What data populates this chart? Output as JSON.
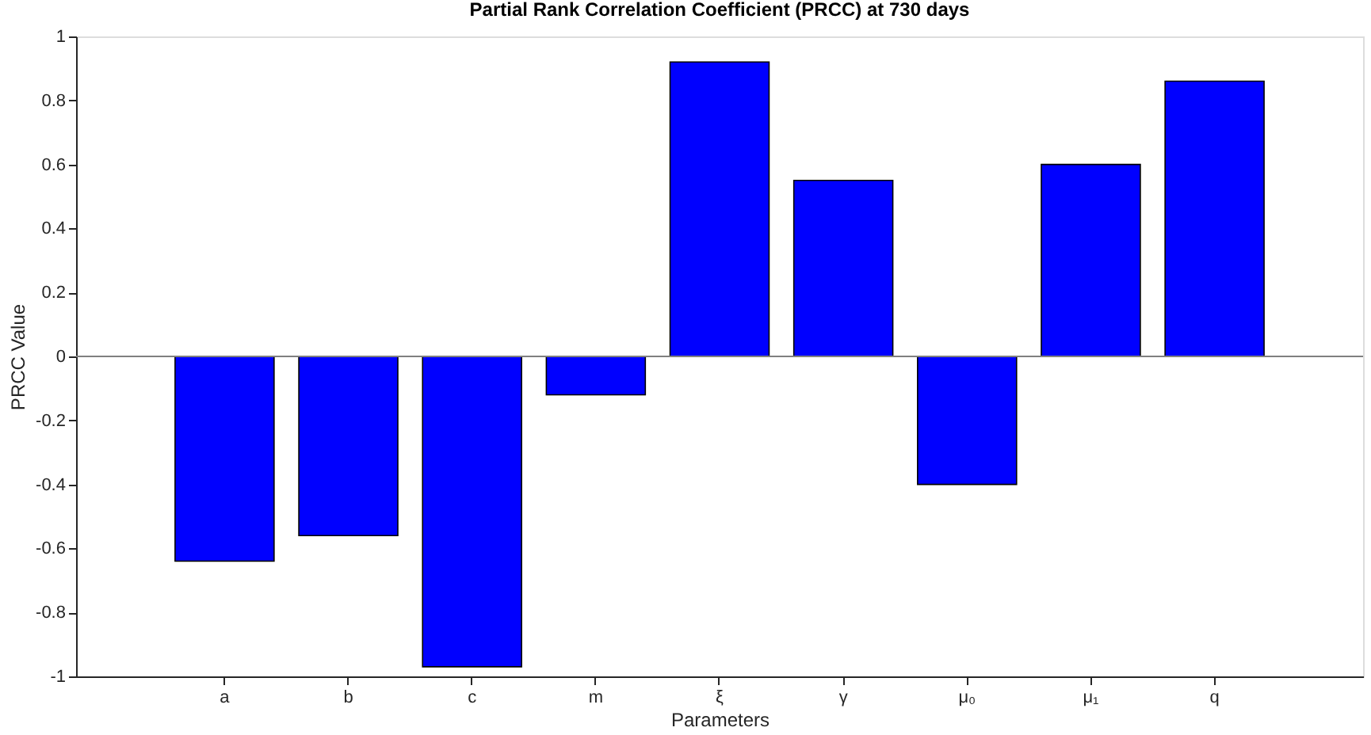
{
  "chart_data": {
    "type": "bar",
    "title": "Partial Rank Correlation Coefficient (PRCC) at 730 days",
    "xlabel": "Parameters",
    "ylabel": "PRCC Value",
    "categories": [
      "a",
      "b",
      "c",
      "m",
      "ξ",
      "γ",
      "μ₀",
      "μ₁",
      "q"
    ],
    "values": [
      -0.64,
      -0.56,
      -0.97,
      -0.12,
      0.92,
      0.55,
      -0.4,
      0.6,
      0.86
    ],
    "color": "#0000ff",
    "ylim": [
      -1,
      1
    ],
    "yticks": [
      -1,
      -0.8,
      -0.6,
      -0.4,
      -0.2,
      0,
      0.2,
      0.4,
      0.6,
      0.8,
      1
    ],
    "ref_lines": [
      {
        "axis": "y",
        "value": 0,
        "color": "#808080"
      }
    ],
    "grid": false
  }
}
